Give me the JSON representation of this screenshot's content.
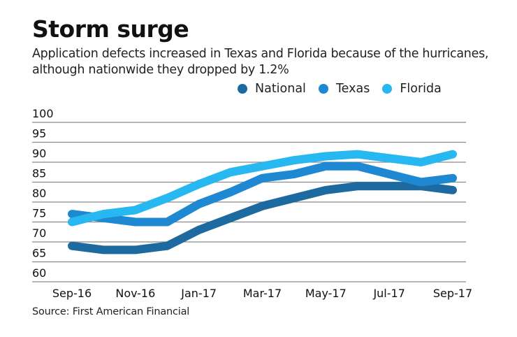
{
  "title": "Storm surge",
  "subtitle": "Application defects increased in Texas and Florida because of the hurricanes, although nationwide they dropped by 1.2%",
  "source": "Source: First American Financial",
  "colors": {
    "National": "#1c6aa0",
    "Texas": "#1f88d2",
    "Florida": "#27b7f1",
    "grid": "#8a8a8a"
  },
  "legend": [
    {
      "label": "National",
      "color": "#1c6aa0"
    },
    {
      "label": "Texas",
      "color": "#1f88d2"
    },
    {
      "label": "Florida",
      "color": "#27b7f1"
    }
  ],
  "chart_data": {
    "type": "line",
    "title": "Storm surge",
    "subtitle": "Application defects increased in Texas and Florida because of the hurricanes, although nationwide they dropped by 1.2%",
    "xlabel": "",
    "ylabel": "",
    "x": [
      "Sep-16",
      "Oct-16",
      "Nov-16",
      "Dec-16",
      "Jan-17",
      "Feb-17",
      "Mar-17",
      "Apr-17",
      "May-17",
      "Jun-17",
      "Jul-17",
      "Aug-17",
      "Sep-17"
    ],
    "x_tick_labels": [
      "Sep-16",
      "Nov-16",
      "Jan-17",
      "Mar-17",
      "May-17",
      "Jul-17",
      "Sep-17"
    ],
    "y_ticks": [
      60,
      65,
      70,
      75,
      80,
      85,
      90,
      95,
      100
    ],
    "ylim": [
      60,
      100
    ],
    "grid": true,
    "legend_position": "top-right",
    "series": [
      {
        "name": "National",
        "color": "#1c6aa0",
        "values": [
          69,
          68,
          68,
          69,
          73,
          76,
          79,
          81,
          83,
          84,
          84,
          84,
          83
        ]
      },
      {
        "name": "Texas",
        "color": "#1f88d2",
        "values": [
          77,
          76,
          75,
          75,
          79.5,
          82.5,
          86,
          87,
          89,
          89,
          87,
          85,
          86
        ]
      },
      {
        "name": "Florida",
        "color": "#27b7f1",
        "values": [
          75,
          77,
          78,
          81,
          84.5,
          87.5,
          89,
          90.5,
          91.5,
          92,
          91,
          90,
          92
        ]
      }
    ]
  }
}
